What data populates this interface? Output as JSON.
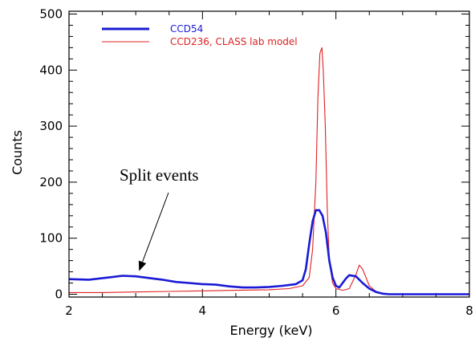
{
  "chart_data": {
    "type": "line",
    "title": "",
    "xlabel": "Energy (keV)",
    "ylabel": "Counts",
    "xlim": [
      2,
      8
    ],
    "ylim": [
      -5,
      505
    ],
    "xticks": [
      2,
      4,
      6,
      8
    ],
    "yticks": [
      0,
      100,
      200,
      300,
      400,
      500
    ],
    "grid": false,
    "legend_position": "top-left",
    "series": [
      {
        "name": "CCD54",
        "color": "#1a1ad6",
        "x": [
          2.0,
          2.3,
          2.6,
          2.8,
          3.0,
          3.2,
          3.4,
          3.6,
          3.8,
          4.0,
          4.2,
          4.4,
          4.6,
          4.8,
          5.0,
          5.2,
          5.4,
          5.5,
          5.55,
          5.6,
          5.65,
          5.7,
          5.75,
          5.8,
          5.85,
          5.9,
          5.95,
          6.0,
          6.05,
          6.1,
          6.15,
          6.2,
          6.3,
          6.4,
          6.5,
          6.6,
          6.7,
          6.8,
          7.0,
          7.5,
          8.0
        ],
        "values": [
          27,
          26,
          30,
          33,
          32,
          29,
          26,
          22,
          20,
          18,
          17,
          14,
          12,
          12,
          13,
          15,
          18,
          25,
          45,
          90,
          130,
          150,
          150,
          140,
          110,
          60,
          30,
          15,
          12,
          20,
          28,
          34,
          32,
          20,
          10,
          4,
          1,
          0,
          0,
          0,
          0
        ]
      },
      {
        "name": "CCD236, CLASS lab model",
        "color": "#e02020",
        "x": [
          2.0,
          2.5,
          3.0,
          3.5,
          4.0,
          4.5,
          5.0,
          5.3,
          5.5,
          5.6,
          5.65,
          5.7,
          5.73,
          5.76,
          5.79,
          5.81,
          5.84,
          5.87,
          5.9,
          5.95,
          6.0,
          6.1,
          6.2,
          6.3,
          6.35,
          6.4,
          6.45,
          6.5,
          6.6,
          6.7,
          6.8,
          7.0,
          7.5,
          8.0
        ],
        "values": [
          3,
          3,
          4,
          5,
          6,
          7,
          8,
          10,
          15,
          30,
          80,
          200,
          350,
          430,
          440,
          400,
          300,
          150,
          60,
          20,
          10,
          7,
          10,
          35,
          52,
          45,
          30,
          15,
          5,
          2,
          0,
          0,
          0,
          0
        ]
      }
    ],
    "annotations": [
      {
        "text": "Split events",
        "arrow_to": [
          3.05,
          30
        ]
      }
    ]
  }
}
